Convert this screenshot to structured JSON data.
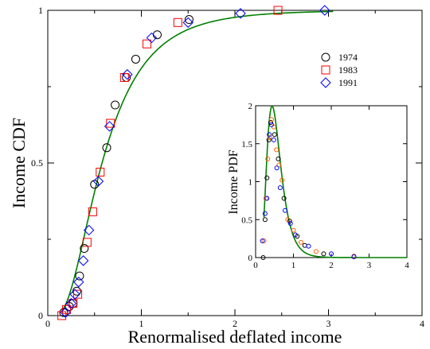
{
  "chart_data": [
    {
      "type": "scatter",
      "xlabel": "Renormalised deflated income",
      "ylabel": "Income CDF",
      "xlim": [
        0,
        4
      ],
      "ylim": [
        0,
        1
      ],
      "xticks": [
        "0",
        "1",
        "2",
        "3",
        "4"
      ],
      "yticks": [
        "0",
        "0.5",
        "1"
      ],
      "legend": {
        "placement": "top-right",
        "entries": [
          "1974",
          "1983",
          "1991"
        ]
      },
      "series": [
        {
          "name": "1974",
          "marker": "circle",
          "color": "#000000",
          "x": [
            0.17,
            0.23,
            0.27,
            0.31,
            0.34,
            0.39,
            0.5,
            0.63,
            0.72,
            0.84,
            0.94,
            1.17,
            1.51
          ],
          "y": [
            0.01,
            0.03,
            0.04,
            0.08,
            0.13,
            0.22,
            0.43,
            0.55,
            0.69,
            0.78,
            0.84,
            0.92,
            0.97
          ]
        },
        {
          "name": "1983",
          "marker": "square",
          "color": "#ff0000",
          "x": [
            0.15,
            0.2,
            0.27,
            0.32,
            0.42,
            0.48,
            0.56,
            0.67,
            0.82,
            1.06,
            1.39,
            2.46
          ],
          "y": [
            0.0,
            0.02,
            0.04,
            0.07,
            0.24,
            0.34,
            0.47,
            0.63,
            0.78,
            0.89,
            0.96,
            1.0
          ]
        },
        {
          "name": "1991",
          "marker": "diamond",
          "color": "#0000ff",
          "x": [
            0.19,
            0.25,
            0.29,
            0.33,
            0.38,
            0.44,
            0.54,
            0.66,
            0.85,
            1.11,
            1.5,
            2.06,
            2.96
          ],
          "y": [
            0.01,
            0.04,
            0.07,
            0.11,
            0.18,
            0.28,
            0.44,
            0.62,
            0.79,
            0.91,
            0.96,
            0.99,
            1.0
          ]
        }
      ],
      "fit_curve": {
        "color": "#008000"
      }
    },
    {
      "type": "scatter",
      "xlabel": "",
      "ylabel": "Income PDF",
      "xlim": [
        0,
        4
      ],
      "ylim": [
        0,
        2
      ],
      "xticks": [
        "0",
        "1",
        "2",
        "3",
        "4"
      ],
      "yticks": [
        "0",
        "0.5",
        "1",
        "1.5",
        "2"
      ],
      "series": [
        {
          "name": "1974",
          "marker": "circle",
          "color": "#000000",
          "x": [
            0.2,
            0.25,
            0.3,
            0.35,
            0.4,
            0.5,
            0.6,
            0.75,
            0.9,
            1.1,
            1.3,
            1.8,
            2.6
          ],
          "y": [
            0.0,
            0.5,
            1.05,
            1.55,
            1.78,
            1.62,
            1.3,
            0.78,
            0.48,
            0.28,
            0.16,
            0.05,
            0.01
          ]
        },
        {
          "name": "1983",
          "marker": "circle",
          "color": "#ff6000",
          "x": [
            0.22,
            0.27,
            0.32,
            0.37,
            0.42,
            0.48,
            0.55,
            0.62,
            0.7,
            0.85,
            1.0,
            1.2,
            1.6,
            2.6
          ],
          "y": [
            0.22,
            0.78,
            1.3,
            1.58,
            1.82,
            1.72,
            1.42,
            1.22,
            1.02,
            0.5,
            0.36,
            0.2,
            0.08,
            0.02
          ]
        },
        {
          "name": "1991",
          "marker": "circle",
          "color": "#0000ff",
          "x": [
            0.18,
            0.25,
            0.3,
            0.36,
            0.42,
            0.48,
            0.56,
            0.65,
            0.78,
            0.92,
            1.05,
            1.4,
            2.0,
            2.6
          ],
          "y": [
            0.22,
            0.58,
            0.78,
            1.62,
            1.75,
            1.55,
            1.18,
            0.92,
            0.62,
            0.45,
            0.3,
            0.15,
            0.05,
            0.01
          ]
        }
      ],
      "fit_curve": {
        "color": "#008000"
      }
    }
  ]
}
